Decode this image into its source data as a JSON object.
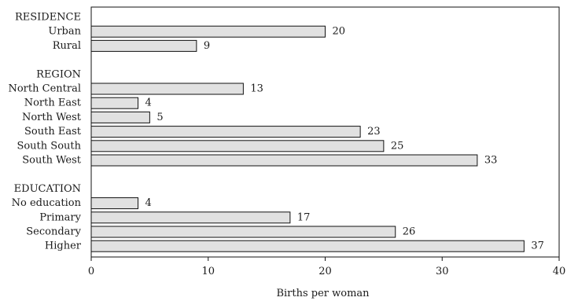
{
  "chart_data": {
    "type": "bar",
    "orientation": "horizontal",
    "title": "",
    "xlabel": "Births per woman",
    "ylabel": "",
    "xlim": [
      0,
      40
    ],
    "xticks": [
      0,
      10,
      20,
      30,
      40
    ],
    "grid": false,
    "legend": "none",
    "bar_color": "#e1e1e1",
    "groups": [
      {
        "label": "RESIDENCE",
        "categories": [
          "Urban",
          "Rural"
        ],
        "values": [
          20,
          9
        ]
      },
      {
        "label": "REGION",
        "categories": [
          "North Central",
          "North East",
          "North West",
          "South East",
          "South South",
          "South West"
        ],
        "values": [
          13,
          4,
          5,
          23,
          25,
          33
        ]
      },
      {
        "label": "EDUCATION",
        "categories": [
          "No education",
          "Primary",
          "Secondary",
          "Higher"
        ],
        "values": [
          4,
          17,
          26,
          37
        ]
      }
    ]
  }
}
